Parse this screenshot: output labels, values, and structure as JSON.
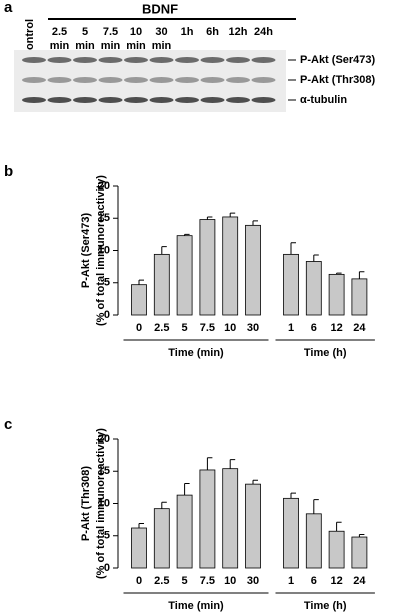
{
  "blot": {
    "panel": "a",
    "control": "Control",
    "treatment": "BDNF",
    "lanes": [
      [
        "2.5",
        "min"
      ],
      [
        "5",
        "min"
      ],
      [
        "7.5",
        "min"
      ],
      [
        "10",
        "min"
      ],
      [
        "30",
        "min"
      ],
      [
        "1h"
      ],
      [
        "6h"
      ],
      [
        "12h"
      ],
      [
        "24h"
      ]
    ],
    "bands": [
      "P-Akt (Ser473)",
      "P-Akt (Thr308)",
      "α-tubulin"
    ]
  },
  "chart_data": [
    {
      "type": "bar",
      "panel": "b",
      "ylabel": [
        "P-Akt (Ser473)",
        "(% of total immunoreactivity)"
      ],
      "ylim": [
        0,
        20
      ],
      "yticks": [
        0,
        5,
        10,
        15,
        20
      ],
      "color": "#c8c8c8",
      "groups": [
        {
          "label": "Time (min)",
          "categories": [
            "0",
            "2.5",
            "5",
            "7.5",
            "10",
            "30"
          ],
          "values": [
            4.7,
            9.4,
            12.3,
            14.8,
            15.2,
            13.9
          ],
          "errors": [
            0.7,
            1.2,
            0.2,
            0.4,
            0.6,
            0.7
          ]
        },
        {
          "label": "Time (h)",
          "categories": [
            "1",
            "6",
            "12",
            "24"
          ],
          "values": [
            9.4,
            8.3,
            6.3,
            5.6
          ],
          "errors": [
            1.8,
            1.0,
            0.2,
            1.1
          ]
        }
      ]
    },
    {
      "type": "bar",
      "panel": "c",
      "ylabel": [
        "P-Akt (Thr308)",
        "(% of total immunoreactivity)"
      ],
      "ylim": [
        0,
        20
      ],
      "yticks": [
        0,
        5,
        10,
        15,
        20
      ],
      "color": "#c8c8c8",
      "groups": [
        {
          "label": "Time (min)",
          "categories": [
            "0",
            "2.5",
            "5",
            "7.5",
            "10",
            "30"
          ],
          "values": [
            6.2,
            9.2,
            11.3,
            15.2,
            15.4,
            13.0
          ],
          "errors": [
            0.7,
            1.0,
            1.8,
            1.9,
            1.4,
            0.6
          ]
        },
        {
          "label": "Time (h)",
          "categories": [
            "1",
            "6",
            "12",
            "24"
          ],
          "values": [
            10.8,
            8.4,
            5.7,
            4.8
          ],
          "errors": [
            0.8,
            2.2,
            1.4,
            0.4
          ]
        }
      ]
    }
  ]
}
